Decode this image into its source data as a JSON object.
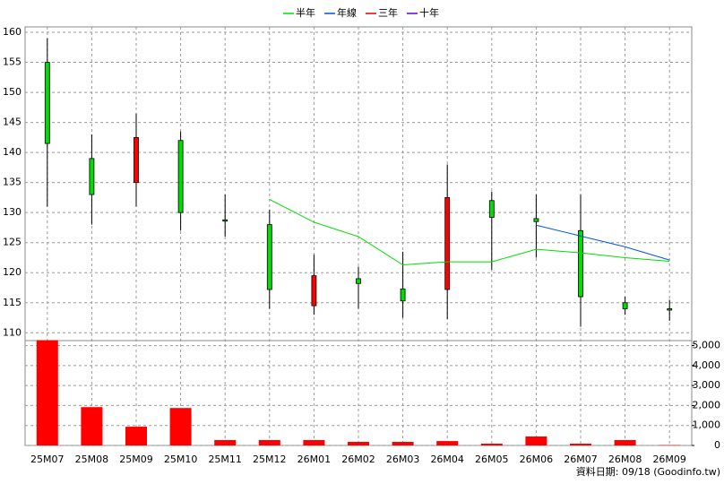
{
  "chart_data": {
    "type": "candlestick",
    "legend": "top",
    "grid": true,
    "categories": [
      "25M07",
      "25M08",
      "25M09",
      "25M10",
      "25M11",
      "25M12",
      "26M01",
      "26M02",
      "26M03",
      "26M04",
      "26M05",
      "26M06",
      "26M07",
      "26M08",
      "26M09"
    ],
    "open": [
      155,
      139,
      135,
      142,
      128.8,
      128,
      114.5,
      119,
      117.3,
      117.2,
      132,
      129,
      127,
      115,
      114
    ],
    "high": [
      159,
      143,
      146.5,
      143.5,
      133,
      130.5,
      123,
      121,
      123.5,
      138,
      133.5,
      133,
      133,
      116,
      115.5
    ],
    "low": [
      131,
      128,
      131,
      127,
      126,
      114,
      113,
      114,
      112.5,
      112.3,
      120.5,
      122.5,
      111,
      113,
      112
    ],
    "close": [
      141.5,
      133,
      142.5,
      130,
      128.6,
      117.2,
      119.5,
      118.2,
      115.3,
      132.5,
      129.2,
      128.5,
      116,
      114,
      113.8
    ],
    "up_color": "#ff0000",
    "down_color": "#00dd00",
    "series": [
      {
        "name": "半年",
        "color": "#00dd00",
        "values": [
          null,
          null,
          null,
          null,
          null,
          132.2,
          128.4,
          126,
          121.3,
          121.8,
          121.8,
          123.9,
          123.3,
          122.5,
          121.9
        ]
      },
      {
        "name": "年線",
        "color": "#0055dd",
        "values": [
          null,
          null,
          null,
          null,
          null,
          null,
          null,
          null,
          null,
          null,
          null,
          127.9,
          126.1,
          124.3,
          122.1
        ]
      },
      {
        "name": "三年",
        "color": "#dd0000",
        "values": [
          null,
          null,
          null,
          null,
          null,
          null,
          null,
          null,
          null,
          null,
          null,
          null,
          null,
          null,
          null
        ]
      },
      {
        "name": "十年",
        "color": "#6600cc",
        "values": [
          null,
          null,
          null,
          null,
          null,
          null,
          null,
          null,
          null,
          null,
          null,
          null,
          null,
          null,
          null
        ]
      }
    ],
    "ylim": [
      108.7,
      160.9
    ],
    "yticks": [
      110,
      115,
      120,
      125,
      130,
      135,
      140,
      145,
      150,
      155,
      160
    ],
    "volume": {
      "color": "#ff0000",
      "values": [
        5270,
        1920,
        940,
        1875,
        270,
        270,
        270,
        180,
        180,
        220,
        90,
        450,
        90,
        270,
        20
      ],
      "ylim": [
        0,
        5250
      ],
      "yticks": [
        0,
        {
          "value": 1000,
          "label": "1,000"
        },
        {
          "value": 2000,
          "label": "2,000"
        },
        {
          "value": 3000,
          "label": "3,000"
        },
        {
          "value": 4000,
          "label": "4,000"
        },
        {
          "value": 5000,
          "label": "5,000"
        }
      ]
    },
    "footnote": "資料日期: 09/18 (Goodinfo.tw)"
  }
}
